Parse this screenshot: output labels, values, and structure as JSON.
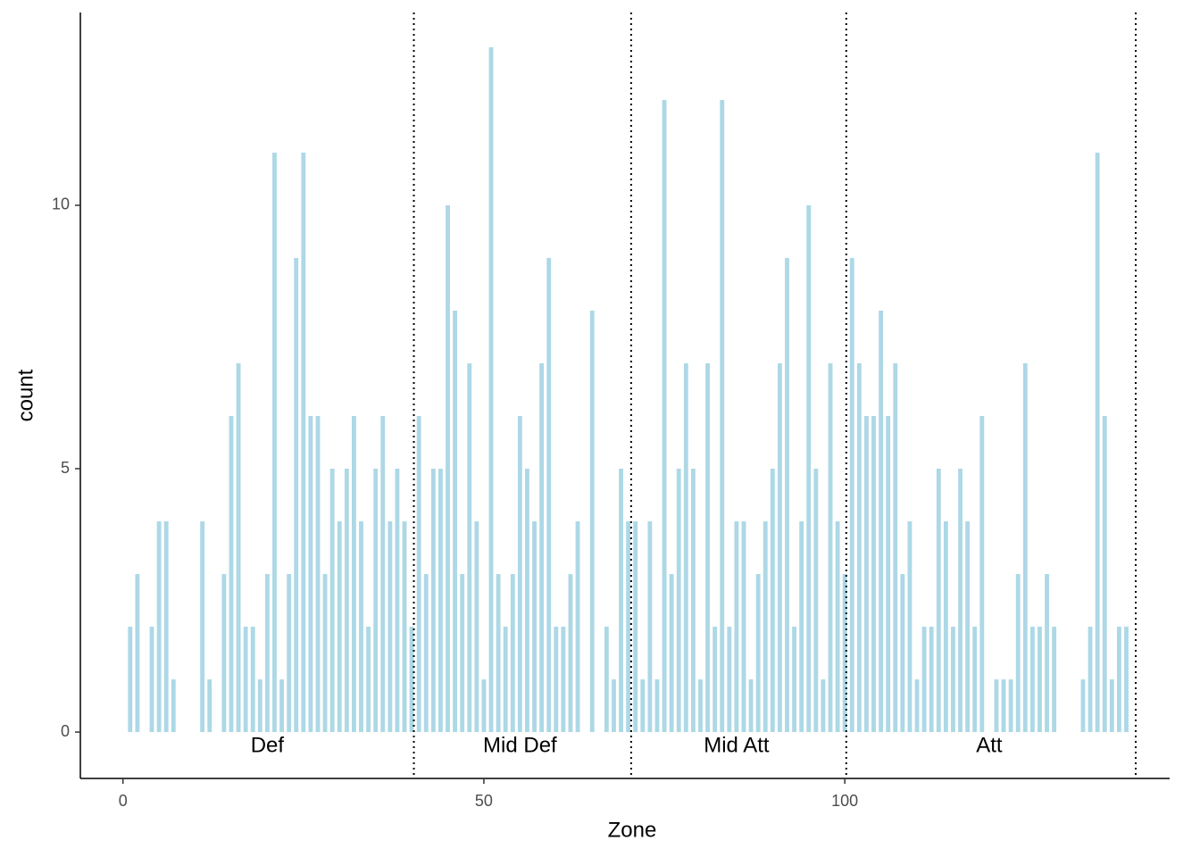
{
  "chart_data": {
    "type": "bar",
    "x_label": "Zone",
    "y_label": "count",
    "x": [
      1,
      2,
      4,
      5,
      6,
      7,
      11,
      12,
      14,
      15,
      16,
      17,
      18,
      19,
      20,
      21,
      22,
      23,
      24,
      25,
      26,
      27,
      28,
      29,
      30,
      31,
      32,
      33,
      34,
      35,
      36,
      37,
      38,
      39,
      40,
      41,
      42,
      43,
      44,
      45,
      46,
      47,
      48,
      49,
      50,
      51,
      52,
      53,
      54,
      55,
      56,
      57,
      58,
      59,
      60,
      61,
      62,
      63,
      65,
      67,
      68,
      69,
      70,
      71,
      72,
      73,
      74,
      75,
      76,
      77,
      78,
      79,
      80,
      81,
      82,
      83,
      84,
      85,
      86,
      87,
      88,
      89,
      90,
      91,
      92,
      93,
      94,
      95,
      96,
      97,
      98,
      99,
      100,
      101,
      102,
      103,
      104,
      105,
      106,
      107,
      108,
      109,
      110,
      111,
      112,
      113,
      114,
      115,
      116,
      117,
      118,
      119,
      121,
      122,
      123,
      124,
      125,
      126,
      127,
      128,
      129,
      133,
      134,
      135,
      136,
      137,
      138,
      139
    ],
    "values": [
      2,
      3,
      2,
      4,
      4,
      1,
      4,
      1,
      3,
      6,
      7,
      2,
      2,
      1,
      3,
      11,
      1,
      3,
      9,
      11,
      6,
      6,
      3,
      5,
      4,
      5,
      6,
      4,
      2,
      5,
      6,
      4,
      5,
      4,
      2,
      6,
      3,
      5,
      5,
      10,
      8,
      3,
      7,
      4,
      1,
      13,
      3,
      2,
      3,
      6,
      5,
      4,
      7,
      9,
      2,
      2,
      3,
      4,
      8,
      2,
      1,
      5,
      4,
      4,
      1,
      4,
      1,
      12,
      3,
      5,
      7,
      5,
      1,
      7,
      2,
      12,
      2,
      4,
      4,
      1,
      3,
      4,
      5,
      7,
      9,
      2,
      4,
      10,
      5,
      1,
      7,
      4,
      3,
      9,
      7,
      6,
      6,
      8,
      6,
      7,
      3,
      4,
      1,
      2,
      2,
      5,
      4,
      2,
      5,
      4,
      2,
      6,
      1,
      1,
      1,
      3,
      7,
      2,
      2,
      3,
      2,
      1,
      2,
      11,
      6,
      1,
      2,
      2
    ],
    "color": "#add8e6",
    "xlim": [
      -5.9,
      145.0
    ],
    "ylim": [
      -0.88,
      13.66
    ],
    "xticks": [
      0,
      50,
      100
    ],
    "yticks": [
      0,
      5,
      10
    ],
    "vlines": [
      40.3,
      70.4,
      100.2,
      140.3
    ],
    "annotations": [
      {
        "text": "Def",
        "x": 20,
        "y": -0.27
      },
      {
        "text": "Mid Def",
        "x": 55,
        "y": -0.27
      },
      {
        "text": "Mid Att",
        "x": 85,
        "y": -0.27
      },
      {
        "text": "Att",
        "x": 120,
        "y": -0.27
      }
    ]
  }
}
